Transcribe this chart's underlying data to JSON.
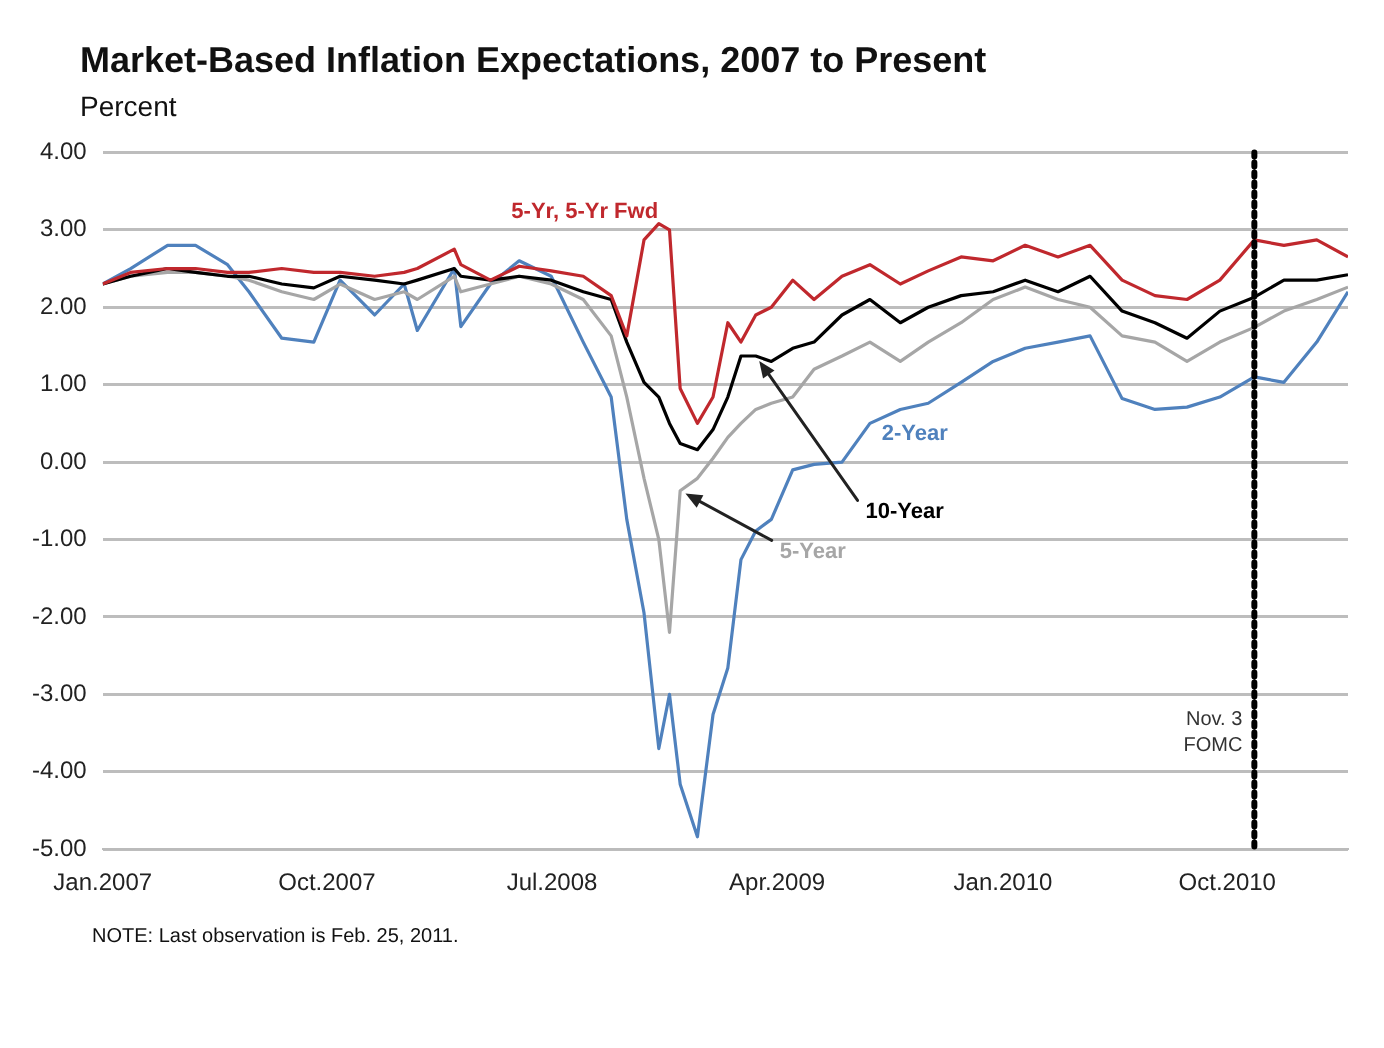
{
  "chart_data": {
    "type": "line",
    "title": "Market-Based Inflation Expectations, 2007 to Present",
    "ylabel": "Percent",
    "x": [
      "2007-01-01",
      "2007-02-04",
      "2007-03-21",
      "2007-04-24",
      "2007-06-02",
      "2007-06-28",
      "2007-08-07",
      "2007-09-15",
      "2007-10-17",
      "2007-11-28",
      "2008-01-03",
      "2008-01-19",
      "2008-03-04",
      "2008-03-12",
      "2008-04-17",
      "2008-05-22",
      "2008-06-30",
      "2008-08-08",
      "2008-09-11",
      "2008-09-30",
      "2008-10-21",
      "2008-11-08",
      "2008-11-21",
      "2008-12-04",
      "2008-12-25",
      "2009-01-13",
      "2009-01-31",
      "2009-02-16",
      "2009-03-06",
      "2009-03-25",
      "2009-04-20",
      "2009-05-16",
      "2009-06-19",
      "2009-07-23",
      "2009-08-29",
      "2009-10-02",
      "2009-11-11",
      "2009-12-20",
      "2010-01-28",
      "2010-03-09",
      "2010-04-17",
      "2010-05-26",
      "2010-07-05",
      "2010-08-13",
      "2010-09-22",
      "2010-11-03",
      "2010-12-09",
      "2011-01-18",
      "2011-02-25"
    ],
    "series": [
      {
        "name": "5-Yr, 5-Yr Fwd",
        "color": "#c0282d",
        "values": [
          2.3,
          2.45,
          2.5,
          2.5,
          2.45,
          2.45,
          2.5,
          2.45,
          2.45,
          2.4,
          2.45,
          2.5,
          2.75,
          2.55,
          2.35,
          2.53,
          2.47,
          2.4,
          2.15,
          1.63,
          2.87,
          3.08,
          3.0,
          0.95,
          0.5,
          0.84,
          1.8,
          1.55,
          1.9,
          2.0,
          2.35,
          2.1,
          2.4,
          2.55,
          2.3,
          2.47,
          2.65,
          2.6,
          2.8,
          2.65,
          2.8,
          2.35,
          2.15,
          2.1,
          2.35,
          2.87,
          2.8,
          2.87,
          2.65
        ]
      },
      {
        "name": "10-Year",
        "color": "#000000",
        "values": [
          2.3,
          2.4,
          2.5,
          2.45,
          2.4,
          2.4,
          2.3,
          2.25,
          2.4,
          2.35,
          2.3,
          2.35,
          2.5,
          2.4,
          2.35,
          2.4,
          2.35,
          2.2,
          2.1,
          1.55,
          1.03,
          0.84,
          0.5,
          0.24,
          0.16,
          0.42,
          0.84,
          1.37,
          1.37,
          1.3,
          1.47,
          1.55,
          1.9,
          2.1,
          1.8,
          2.0,
          2.15,
          2.2,
          2.35,
          2.2,
          2.4,
          1.95,
          1.8,
          1.6,
          1.95,
          2.13,
          2.35,
          2.35,
          2.42
        ]
      },
      {
        "name": "5-Year",
        "color": "#a6a6a6",
        "values": [
          2.3,
          2.4,
          2.45,
          2.45,
          2.4,
          2.35,
          2.2,
          2.1,
          2.3,
          2.1,
          2.2,
          2.1,
          2.4,
          2.2,
          2.3,
          2.4,
          2.3,
          2.1,
          1.63,
          0.84,
          -0.21,
          -1.0,
          -2.2,
          -0.37,
          -0.21,
          0.05,
          0.32,
          0.5,
          0.68,
          0.76,
          0.84,
          1.2,
          1.37,
          1.55,
          1.3,
          1.55,
          1.8,
          2.1,
          2.26,
          2.1,
          2.0,
          1.63,
          1.55,
          1.3,
          1.55,
          1.74,
          1.95,
          2.1,
          2.26
        ]
      },
      {
        "name": "2-Year",
        "color": "#4f81bd",
        "values": [
          2.3,
          2.5,
          2.8,
          2.8,
          2.55,
          2.2,
          1.6,
          1.55,
          2.35,
          1.9,
          2.3,
          1.7,
          2.5,
          1.75,
          2.3,
          2.6,
          2.4,
          1.55,
          0.84,
          -0.74,
          -1.95,
          -3.7,
          -3.0,
          -4.16,
          -4.84,
          -3.26,
          -2.66,
          -1.26,
          -0.89,
          -0.74,
          -0.1,
          -0.03,
          0.0,
          0.5,
          0.68,
          0.76,
          1.03,
          1.3,
          1.47,
          1.55,
          1.63,
          0.82,
          0.68,
          0.71,
          0.84,
          1.1,
          1.03,
          1.55,
          2.2
        ]
      }
    ],
    "xlim": [
      "2007-01-01",
      "2011-02-25"
    ],
    "xticks": [
      {
        "value": "2007-01-01",
        "label": "Jan.2007"
      },
      {
        "value": "2007-10-01",
        "label": "Oct.2007"
      },
      {
        "value": "2008-07-01",
        "label": "Jul.2008"
      },
      {
        "value": "2009-04-01",
        "label": "Apr.2009"
      },
      {
        "value": "2010-01-01",
        "label": "Jan.2010"
      },
      {
        "value": "2010-10-01",
        "label": "Oct.2010"
      }
    ],
    "ylim": [
      -5,
      4
    ],
    "yticks": [
      {
        "value": 4,
        "label": "4.00"
      },
      {
        "value": 3,
        "label": "3.00"
      },
      {
        "value": 2,
        "label": "2.00"
      },
      {
        "value": 1,
        "label": "1.00"
      },
      {
        "value": 0,
        "label": "0.00"
      },
      {
        "value": -1,
        "label": "-1.00"
      },
      {
        "value": -2,
        "label": "-2.00"
      },
      {
        "value": -3,
        "label": "-3.00"
      },
      {
        "value": -4,
        "label": "-4.00"
      },
      {
        "value": -5,
        "label": "-5.00"
      }
    ],
    "ref_lines": [
      {
        "axis": "x",
        "value": "2010-11-03",
        "label": "Nov. 3 FOMC",
        "color": "#000000",
        "line_style": "dotted"
      }
    ],
    "annotations": [
      "NOTE: Last observation is Feb. 25, 2011."
    ],
    "grid": "y",
    "legend": false,
    "marker": "none",
    "line_style": "solid"
  }
}
